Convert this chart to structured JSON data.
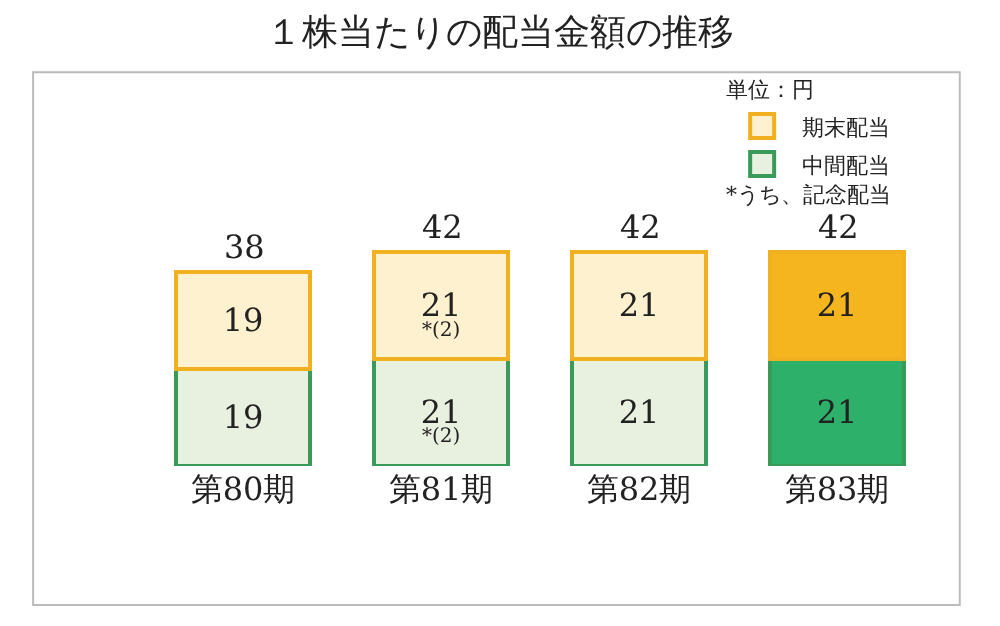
{
  "chart_data": {
    "type": "bar",
    "title": "１株当たりの配当金額の推移",
    "stacked": true,
    "data_labels": true,
    "legend": "top right",
    "legend_title": "単位：円",
    "categories": [
      "第80期",
      "第81期",
      "第82期",
      "第83期"
    ],
    "series": [
      {
        "name": "中間配当",
        "color": "#3a9a5a",
        "colors": [
          "#e8f1df",
          "#e8f1df",
          "#e8f1df",
          "#2db06a"
        ],
        "values": [
          19,
          21,
          21,
          21
        ]
      },
      {
        "name": "期末配当",
        "color": "#f0b020",
        "colors": [
          "#fdf1cf",
          "#fdf1cf",
          "#fdf1cf",
          "#f5b51e"
        ],
        "values": [
          19,
          21,
          21,
          21
        ]
      }
    ],
    "totals": [
      "38",
      "42",
      "42",
      "42"
    ],
    "annotations": [
      "*うち、記念配当",
      "*(2)",
      "*(2)"
    ]
  }
}
